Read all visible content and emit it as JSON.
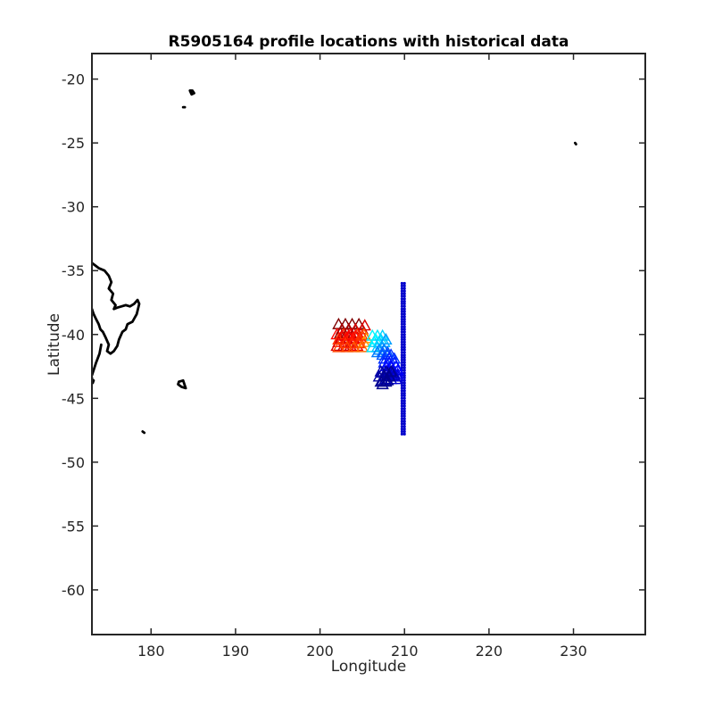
{
  "chart_data": {
    "type": "scatter",
    "title": "R5905164 profile locations with historical data",
    "xlabel": "Longitude",
    "ylabel": "Latitude",
    "xlim": [
      173,
      238.5
    ],
    "ylim": [
      -63.5,
      -18
    ],
    "xticks": [
      180,
      190,
      200,
      210,
      220,
      230
    ],
    "yticks": [
      -20,
      -25,
      -30,
      -35,
      -40,
      -45,
      -50,
      -55,
      -60
    ],
    "grid": false,
    "colors": {
      "coastline": "#000000",
      "historical": "#0000cc",
      "profile_colormap": [
        "#00008f",
        "#0000ff",
        "#0080ff",
        "#00ffff",
        "#ffff00",
        "#ff8000",
        "#ff0000",
        "#800000"
      ]
    },
    "series": [
      {
        "marker": "dot",
        "color": "#0000cc",
        "x": [
          209.7,
          209.7,
          209.7,
          209.7,
          209.7,
          209.7,
          209.7,
          209.7,
          209.7,
          209.7,
          209.7,
          209.7,
          209.7,
          209.7,
          209.7,
          209.7,
          209.7,
          209.7,
          209.7,
          209.7,
          209.7,
          209.7,
          209.7,
          209.7,
          209.7,
          209.7,
          209.7,
          209.7,
          209.7,
          209.7,
          209.7,
          209.7,
          209.7,
          209.7,
          209.7,
          209.7,
          209.7,
          209.7,
          209.7,
          209.7,
          209.7,
          209.7,
          209.7,
          209.7,
          209.7,
          209.7,
          209.7,
          209.7,
          209.7,
          209.7,
          209.7,
          209.7,
          209.7,
          209.7,
          209.7,
          209.7,
          209.7,
          209.7,
          209.7,
          209.7,
          210.0,
          210.0,
          210.0,
          210.0,
          210.0,
          210.0,
          210.0,
          210.0,
          210.0,
          210.0,
          210.0,
          210.0,
          210.0,
          210.0,
          210.0,
          210.0,
          210.0,
          210.0,
          210.0,
          210.0,
          210.0,
          210.0,
          210.0,
          210.0,
          210.0,
          210.0,
          210.0,
          210.0,
          210.0,
          210.0,
          210.0,
          210.0,
          210.0,
          210.0,
          210.0,
          210.0,
          210.0,
          210.0,
          210.0,
          210.0,
          210.0,
          210.0,
          210.0,
          210.0,
          210.0,
          210.0,
          210.0,
          210.0,
          210.0,
          210.0,
          210.0,
          210.0,
          210.0,
          210.0,
          210.0,
          210.0,
          210.0,
          210.0,
          210.0,
          210.0
        ],
        "y": [
          -36.0,
          -36.2,
          -36.4,
          -36.6,
          -36.8,
          -37.0,
          -37.2,
          -37.4,
          -37.6,
          -37.8,
          -38.0,
          -38.2,
          -38.4,
          -38.6,
          -38.8,
          -39.0,
          -39.2,
          -39.4,
          -39.6,
          -39.8,
          -40.0,
          -40.2,
          -40.4,
          -40.6,
          -40.8,
          -41.0,
          -41.2,
          -41.4,
          -41.6,
          -41.8,
          -42.0,
          -42.2,
          -42.4,
          -42.6,
          -42.8,
          -43.0,
          -43.2,
          -43.4,
          -43.6,
          -43.8,
          -44.0,
          -44.2,
          -44.4,
          -44.6,
          -44.8,
          -45.0,
          -45.2,
          -45.4,
          -45.6,
          -45.8,
          -46.0,
          -46.2,
          -46.4,
          -46.6,
          -46.8,
          -47.0,
          -47.2,
          -47.4,
          -47.6,
          -47.8,
          -36.0,
          -36.2,
          -36.4,
          -36.6,
          -36.8,
          -37.0,
          -37.2,
          -37.4,
          -37.6,
          -37.8,
          -38.0,
          -38.2,
          -38.4,
          -38.6,
          -38.8,
          -39.0,
          -39.2,
          -39.4,
          -39.6,
          -39.8,
          -40.0,
          -40.2,
          -40.4,
          -40.6,
          -40.8,
          -41.0,
          -41.2,
          -41.4,
          -41.6,
          -41.8,
          -42.0,
          -42.2,
          -42.4,
          -42.6,
          -42.8,
          -43.0,
          -43.2,
          -43.4,
          -43.6,
          -43.8,
          -44.0,
          -44.2,
          -44.4,
          -44.6,
          -44.8,
          -45.0,
          -45.2,
          -45.4,
          -45.6,
          -45.8,
          -46.0,
          -46.2,
          -46.4,
          -46.6,
          -46.8,
          -47.0,
          -47.2,
          -47.4,
          -47.6,
          -47.8
        ]
      },
      {
        "marker": "triangle",
        "colormap": "jet",
        "x": [
          202.2,
          203.0,
          203.8,
          204.6,
          205.3,
          202.6,
          203.4,
          204.2,
          205.0,
          202.0,
          202.8,
          203.6,
          204.4,
          205.2,
          202.4,
          203.2,
          204.0,
          204.8,
          205.5,
          202.2,
          203.0,
          203.8,
          204.6,
          202.0,
          202.8,
          203.6,
          204.4,
          202.4,
          203.2,
          204.0,
          202.2,
          203.0,
          203.8,
          204.6,
          205.2,
          202.6,
          203.4,
          204.2,
          205.0,
          203.0,
          203.8,
          204.6,
          202.2,
          203.2,
          204.0,
          205.0,
          206.2,
          206.8,
          207.4,
          206.4,
          207.0,
          207.6,
          206.2,
          206.8,
          207.4,
          206.6,
          207.2,
          207.8,
          207.0,
          207.6,
          206.8,
          207.4,
          208.0,
          207.4,
          208.0,
          208.4,
          207.6,
          208.2,
          208.8,
          207.6,
          208.2,
          208.8,
          207.8,
          208.4,
          209.0,
          208.0,
          208.6,
          209.2,
          208.2,
          208.8,
          209.2,
          208.0,
          208.6,
          209.2,
          207.8,
          208.4,
          209.0,
          207.6,
          208.2,
          208.8,
          207.4,
          208.0,
          208.6,
          207.2,
          207.8,
          208.4,
          207.0,
          207.6,
          208.2,
          207.4,
          208.0,
          207.2,
          207.8,
          207.4
        ],
        "y": [
          -39.2,
          -39.2,
          -39.2,
          -39.2,
          -39.3,
          -39.6,
          -39.6,
          -39.6,
          -39.6,
          -40.0,
          -40.0,
          -40.0,
          -40.0,
          -40.0,
          -40.3,
          -40.3,
          -40.3,
          -40.3,
          -40.3,
          -40.6,
          -40.6,
          -40.6,
          -40.6,
          -40.9,
          -40.9,
          -40.9,
          -40.9,
          -39.9,
          -39.9,
          -39.9,
          -40.4,
          -40.4,
          -40.4,
          -40.4,
          -40.6,
          -40.1,
          -40.1,
          -40.1,
          -40.1,
          -40.7,
          -40.7,
          -40.7,
          -41.0,
          -41.0,
          -41.0,
          -41.0,
          -40.1,
          -40.1,
          -40.1,
          -40.6,
          -40.6,
          -40.6,
          -41.0,
          -41.0,
          -41.0,
          -40.4,
          -40.4,
          -40.4,
          -41.2,
          -41.2,
          -41.4,
          -41.4,
          -41.4,
          -41.6,
          -41.6,
          -41.6,
          -41.9,
          -41.9,
          -41.9,
          -42.2,
          -42.2,
          -42.2,
          -42.5,
          -42.5,
          -42.5,
          -42.8,
          -42.8,
          -42.8,
          -43.1,
          -43.1,
          -43.1,
          -43.3,
          -43.3,
          -43.3,
          -43.5,
          -43.5,
          -43.5,
          -43.2,
          -43.2,
          -43.2,
          -43.0,
          -43.0,
          -43.0,
          -42.9,
          -42.9,
          -42.9,
          -43.3,
          -43.3,
          -43.3,
          -43.6,
          -43.6,
          -43.7,
          -43.7,
          -43.9
        ],
        "color_value": [
          1.0,
          1.0,
          1.0,
          1.0,
          0.9,
          0.95,
          0.95,
          0.9,
          0.9,
          0.85,
          0.8,
          0.85,
          0.8,
          0.75,
          0.9,
          0.85,
          0.88,
          0.85,
          0.7,
          0.85,
          0.9,
          0.92,
          0.85,
          0.9,
          0.92,
          0.9,
          0.88,
          0.97,
          0.96,
          0.94,
          0.8,
          0.82,
          0.84,
          0.8,
          0.68,
          0.88,
          0.86,
          0.84,
          0.8,
          0.8,
          0.82,
          0.8,
          0.78,
          0.78,
          0.76,
          0.74,
          0.42,
          0.4,
          0.38,
          0.38,
          0.36,
          0.34,
          0.4,
          0.36,
          0.34,
          0.42,
          0.38,
          0.32,
          0.3,
          0.28,
          0.28,
          0.26,
          0.24,
          0.24,
          0.22,
          0.2,
          0.2,
          0.18,
          0.2,
          0.18,
          0.16,
          0.18,
          0.16,
          0.14,
          0.16,
          0.14,
          0.12,
          0.14,
          0.12,
          0.1,
          0.12,
          0.1,
          0.08,
          0.1,
          0.1,
          0.06,
          0.08,
          0.06,
          0.04,
          0.06,
          0.04,
          0.02,
          0.04,
          0.04,
          0.02,
          0.0,
          0.02,
          0.0,
          0.0,
          0.02,
          0.0,
          0.0,
          0.0,
          0.0
        ]
      }
    ],
    "coastlines": [
      {
        "x": [
          173.0,
          173.8,
          174.5,
          175.0,
          175.3,
          175.0,
          175.5,
          175.3,
          175.8,
          175.6,
          176.0,
          176.5,
          177.0,
          177.5,
          178.0,
          178.4,
          178.6,
          178.3,
          177.8,
          177.2,
          177.0,
          176.6,
          176.2,
          176.0,
          175.6,
          175.2,
          174.8,
          175.0,
          174.6,
          174.3,
          174.0,
          173.8,
          173.5,
          173.2,
          173.0
        ],
        "y": [
          -34.4,
          -34.8,
          -35.0,
          -35.4,
          -35.9,
          -36.4,
          -36.8,
          -37.3,
          -37.7,
          -38.0,
          -37.9,
          -37.8,
          -37.7,
          -37.8,
          -37.6,
          -37.3,
          -37.6,
          -38.4,
          -39.0,
          -39.2,
          -39.6,
          -39.8,
          -40.4,
          -40.9,
          -41.3,
          -41.5,
          -41.3,
          -40.8,
          -40.2,
          -39.8,
          -39.6,
          -39.2,
          -38.8,
          -38.4,
          -38.0
        ]
      },
      {
        "x": [
          174.1,
          173.9,
          173.5,
          173.0
        ],
        "y": [
          -40.8,
          -41.5,
          -42.2,
          -43.2
        ]
      },
      {
        "x": [
          173.0,
          173.1,
          173.2
        ],
        "y": [
          -43.4,
          -43.8,
          -43.6
        ]
      },
      {
        "x": [
          183.3,
          183.8,
          184.1,
          183.6,
          183.2,
          183.3
        ],
        "y": [
          -43.7,
          -43.6,
          -44.2,
          -44.1,
          -43.9,
          -43.7
        ]
      },
      {
        "x": [
          184.6,
          184.9,
          185.1,
          184.8,
          184.6
        ],
        "y": [
          -20.9,
          -20.9,
          -21.1,
          -21.2,
          -20.9
        ]
      },
      {
        "x": [
          183.8,
          184.0
        ],
        "y": [
          -22.2,
          -22.2
        ]
      },
      {
        "x": [
          179.0,
          179.2
        ],
        "y": [
          -47.6,
          -47.7
        ]
      },
      {
        "x": [
          230.2,
          230.3
        ],
        "y": [
          -25.0,
          -25.1
        ]
      }
    ]
  }
}
